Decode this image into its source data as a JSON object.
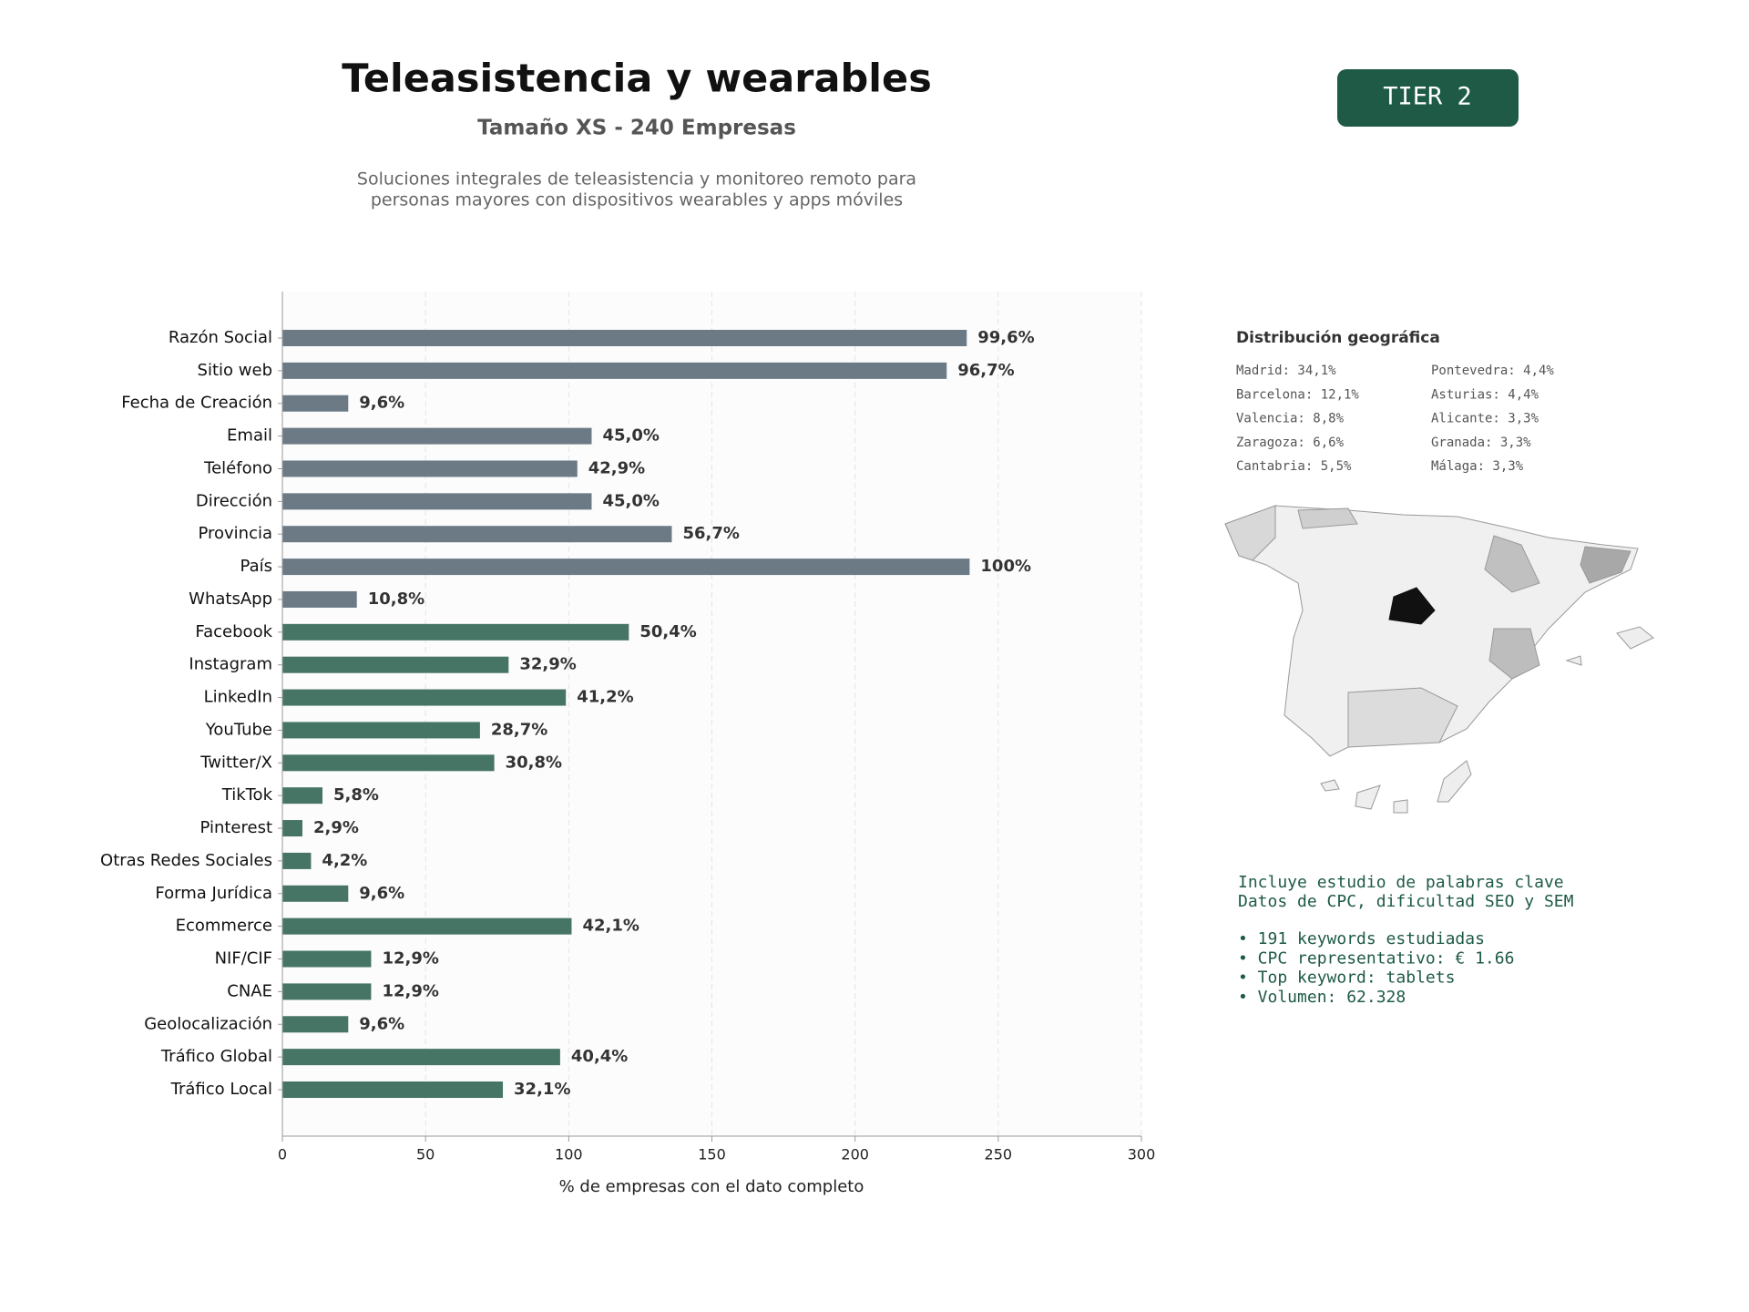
{
  "chart_data": {
    "type": "bar",
    "orientation": "horizontal",
    "title": "Teleasistencia y wearables",
    "subtitle": "Tamaño XS - 240 Empresas",
    "description": [
      "Soluciones integrales de teleasistencia y monitoreo remoto para",
      "personas mayores con dispositivos wearables y apps móviles"
    ],
    "xlabel": "% de empresas con el dato completo",
    "categories": [
      "Razón Social",
      "Sitio web",
      "Fecha de Creación",
      "Email",
      "Teléfono",
      "Dirección",
      "Provincia",
      "País",
      "WhatsApp",
      "Facebook",
      "Instagram",
      "LinkedIn",
      "YouTube",
      "Twitter/X",
      "TikTok",
      "Pinterest",
      "Otras Redes Sociales",
      "Forma Jurídica",
      "Ecommerce",
      "NIF/CIF",
      "CNAE",
      "Geolocalización",
      "Tráfico Global",
      "Tráfico Local"
    ],
    "values": [
      239,
      232,
      23,
      108,
      103,
      108,
      136,
      240,
      26,
      121,
      79,
      99,
      69,
      74,
      14,
      7,
      10,
      23,
      101,
      31,
      31,
      23,
      97,
      77
    ],
    "value_labels": [
      "99,6%",
      "96,7%",
      "9,6%",
      "45,0%",
      "42,9%",
      "45,0%",
      "56,7%",
      "100%",
      "10,8%",
      "50,4%",
      "32,9%",
      "41,2%",
      "28,7%",
      "30,8%",
      "5,8%",
      "2,9%",
      "4,2%",
      "9,6%",
      "42,1%",
      "12,9%",
      "12,9%",
      "9,6%",
      "40,4%",
      "32,1%"
    ],
    "colors": [
      "#6c7a86",
      "#6c7a86",
      "#6c7a86",
      "#6c7a86",
      "#6c7a86",
      "#6c7a86",
      "#6c7a86",
      "#6c7a86",
      "#6c7a86",
      "#477565",
      "#477565",
      "#477565",
      "#477565",
      "#477565",
      "#477565",
      "#477565",
      "#477565",
      "#477565",
      "#477565",
      "#477565",
      "#477565",
      "#477565",
      "#477565",
      "#477565"
    ],
    "xlim": [
      0,
      300
    ],
    "xticks": [
      0,
      50,
      100,
      150,
      200,
      250,
      300
    ],
    "grid": true
  },
  "badge": "TIER 2",
  "geo": {
    "title": "Distribución geográfica",
    "items": [
      "Madrid: 34,1%",
      "Barcelona: 12,1%",
      "Valencia: 8,8%",
      "Zaragoza: 6,6%",
      "Cantabria: 5,5%",
      "Pontevedra: 4,4%",
      "Asturias: 4,4%",
      "Alicante: 3,3%",
      "Granada: 3,3%",
      "Málaga: 3,3%"
    ]
  },
  "keywords": {
    "intro": [
      "Incluye estudio de palabras clave",
      "Datos de CPC, dificultad SEO y SEM"
    ],
    "bullets": [
      "• 191 keywords estudiadas",
      "• CPC representativo: € 1.66",
      "• Top keyword: tablets",
      "• Volumen: 62.328"
    ]
  }
}
